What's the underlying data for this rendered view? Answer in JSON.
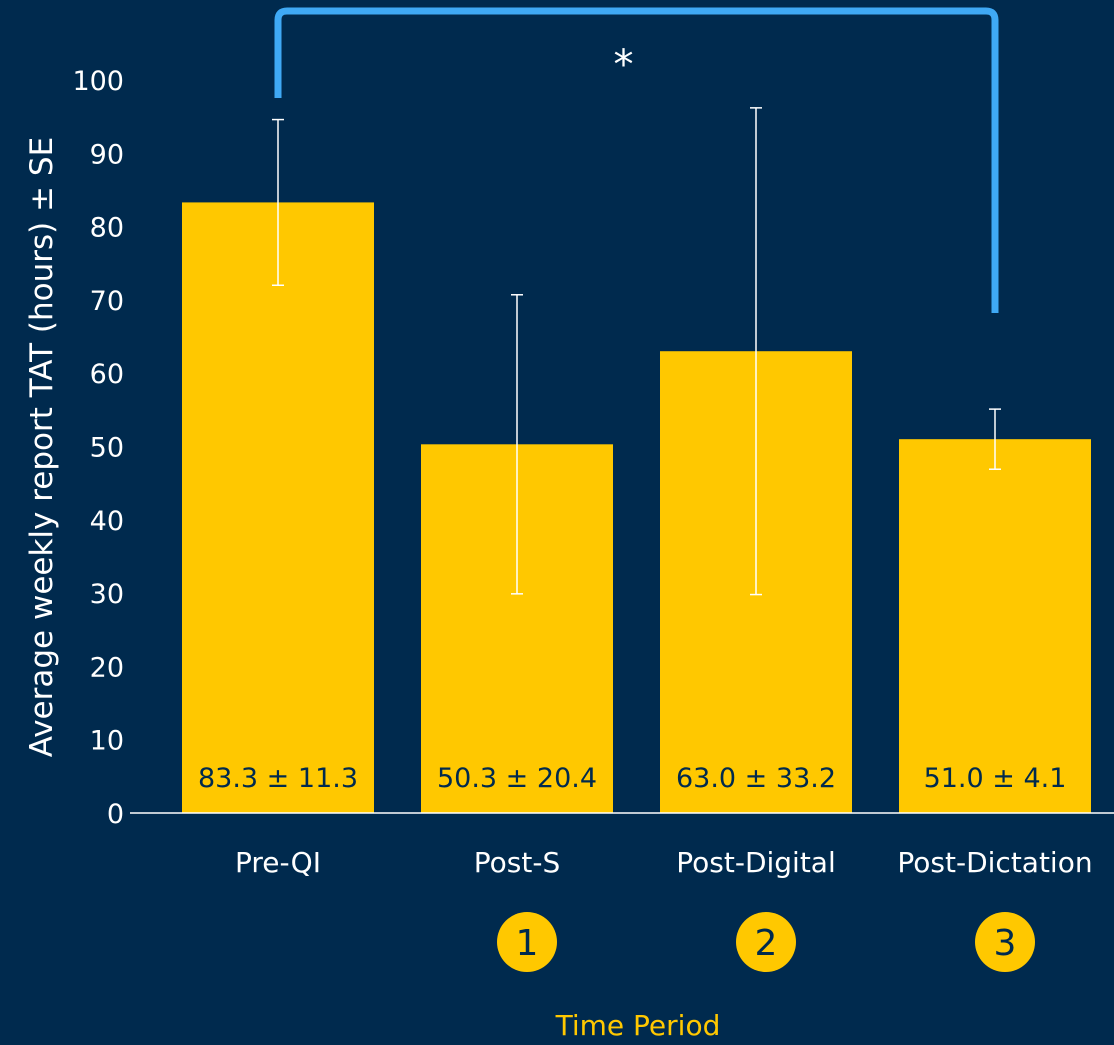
{
  "colors": {
    "background": "#002a4e",
    "bar": "#ffc800",
    "bracket": "#3fa9f5",
    "text": "#ffffff",
    "axis_title_x": "#ffc800"
  },
  "chart_data": {
    "type": "bar",
    "title": "",
    "xlabel": "Time Period",
    "ylabel": "Average weekly report TAT (hours) ± SE",
    "ylim": [
      0,
      100
    ],
    "yticks": [
      "0",
      "10",
      "20",
      "30",
      "40",
      "50",
      "60",
      "70",
      "80",
      "90",
      "100"
    ],
    "grid": false,
    "legend": "none",
    "categories": [
      "Pre-QI",
      "Post-S",
      "Post-Digital",
      "Post-Dictation"
    ],
    "values": [
      83.3,
      50.3,
      63.0,
      51.0
    ],
    "errors": [
      11.3,
      20.4,
      33.2,
      4.1
    ],
    "data_labels": [
      "83.3 ± 11.3",
      "50.3 ± 20.4",
      "63.0 ± 33.2",
      "51.0 ± 4.1"
    ],
    "phase_markers": [
      "",
      "1",
      "2",
      "3"
    ],
    "significance": {
      "from": "Pre-QI",
      "to": "Post-Dictation",
      "label": "*"
    }
  }
}
